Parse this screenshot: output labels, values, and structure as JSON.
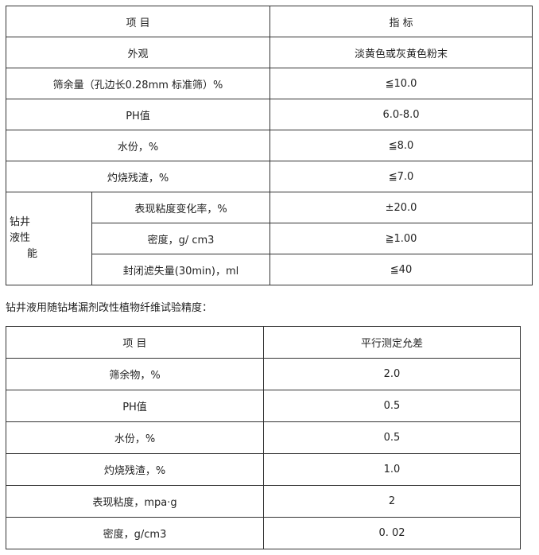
{
  "table1": {
    "headers": [
      "项 目",
      "指 标"
    ],
    "rows": [
      {
        "item": "外观",
        "value": "淡黄色或灰黄色粉末"
      },
      {
        "item": "筛余量（孔边长0.28mm 标准筛）%",
        "value": "≦10.0"
      },
      {
        "item": "PH值",
        "value": "6.0-8.0"
      },
      {
        "item": "水份，%",
        "value": "≦8.0"
      },
      {
        "item": "灼烧残渣，%",
        "value": "≦7.0"
      }
    ],
    "group": {
      "label_lines": [
        "钻井",
        "液性",
        "能"
      ],
      "rows": [
        {
          "item": "表现粘度变化率，%",
          "value": "±20.0"
        },
        {
          "item": "密度，g/ cm3",
          "value": "≧1.00"
        },
        {
          "item": "封闭滤失量(30min)，ml",
          "value": "≦40"
        }
      ]
    }
  },
  "caption": "钻井液用随钻堵漏剂改性植物纤维试验精度：",
  "table2": {
    "headers": [
      "项 目",
      "平行测定允差"
    ],
    "rows": [
      {
        "item": "筛余物，%",
        "value": "2.0"
      },
      {
        "item": "PH值",
        "value": "0.5"
      },
      {
        "item": "水份，%",
        "value": "0.5"
      },
      {
        "item": "灼烧残渣，%",
        "value": "1.0"
      },
      {
        "item": "表现粘度，mpa·g",
        "value": "2"
      },
      {
        "item": "密度，g/cm3",
        "value": "0. 02"
      }
    ]
  }
}
